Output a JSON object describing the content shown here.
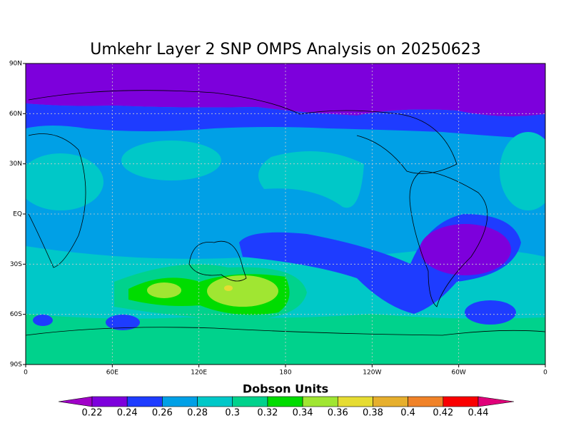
{
  "map": {
    "title": "Umkehr Layer 2 SNP OMPS Analysis on 20250623",
    "lon_ticks": [
      {
        "value": 0,
        "label": "0"
      },
      {
        "value": 60,
        "label": "60E"
      },
      {
        "value": 120,
        "label": "120E"
      },
      {
        "value": 180,
        "label": "180"
      },
      {
        "value": 240,
        "label": "120W"
      },
      {
        "value": 300,
        "label": "60W"
      },
      {
        "value": 360,
        "label": "0"
      }
    ],
    "lat_ticks": [
      {
        "value": 90,
        "label": "90N"
      },
      {
        "value": 60,
        "label": "60N"
      },
      {
        "value": 30,
        "label": "30N"
      },
      {
        "value": 0,
        "label": "EQ"
      },
      {
        "value": -30,
        "label": "30S"
      },
      {
        "value": -60,
        "label": "60S"
      },
      {
        "value": -90,
        "label": "90S"
      }
    ],
    "grid": true
  },
  "colorbar": {
    "label": "Dobson Units",
    "levels": [
      0.22,
      0.24,
      0.26,
      0.28,
      0.3,
      0.32,
      0.34,
      0.36,
      0.38,
      0.4,
      0.42,
      0.44
    ],
    "colors": [
      "#a000c8",
      "#7d00dc",
      "#1e3cff",
      "#00a0e6",
      "#00c8c8",
      "#00d28c",
      "#00dc00",
      "#a0e632",
      "#e6dc32",
      "#e6af2d",
      "#f08228",
      "#fa0000",
      "#e0007a"
    ]
  }
}
